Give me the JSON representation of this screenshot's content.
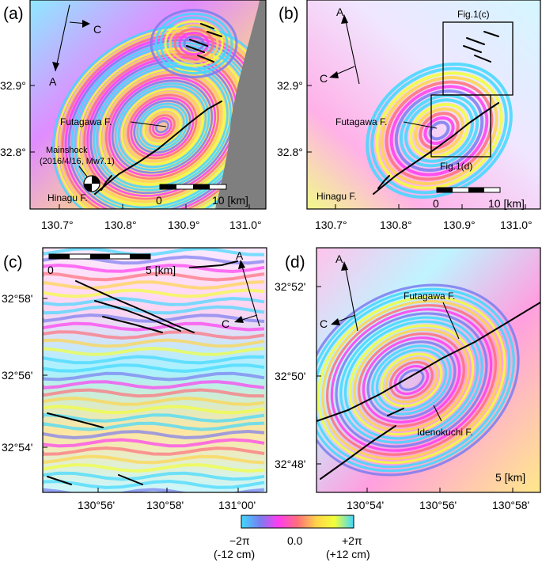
{
  "panels": {
    "a": {
      "label": "(a)",
      "x_ticks": [
        "130.7°",
        "130.8°",
        "130.9°",
        "131.0°"
      ],
      "y_ticks": [
        "32.9°",
        "32.8°"
      ],
      "arrow_a": "A",
      "arrow_c": "C",
      "fault_label": "Futagawa F.",
      "fault2_label": "Hinagu F.",
      "mainshock_line1": "Mainshock",
      "mainshock_line2": "(2016/4/16, Mw7.1)",
      "scale_zero": "0",
      "scale_end": "10 [km]"
    },
    "b": {
      "label": "(b)",
      "x_ticks": [
        "130.7°",
        "130.8°",
        "130.9°",
        "131.0°"
      ],
      "y_ticks": [
        "32.9°",
        "32.8°"
      ],
      "arrow_a": "A",
      "arrow_c": "C",
      "fault_label": "Futagawa F.",
      "fault2_label": "Hinagu F.",
      "box_c_label": "Fig.1(c)",
      "box_d_label": "Fig.1(d)",
      "scale_zero": "0",
      "scale_end": "10 [km]"
    },
    "c": {
      "label": "(c)",
      "x_ticks": [
        "130°56'",
        "130°58'",
        "131°00'"
      ],
      "y_ticks": [
        "32°58'",
        "32°56'",
        "32°54'"
      ],
      "arrow_a": "A",
      "arrow_c": "C",
      "scale_zero": "0",
      "scale_end": "5 [km]"
    },
    "d": {
      "label": "(d)",
      "x_ticks": [
        "130°54'",
        "130°56'",
        "130°58'"
      ],
      "y_ticks": [
        "32°52'",
        "32°50'",
        "32°48'"
      ],
      "arrow_a": "A",
      "arrow_c": "C",
      "fault_label": "Futagawa F.",
      "fault2_label": "Idenokuchi F.",
      "scale_end": "5 [km]"
    }
  },
  "colorbar": {
    "min_label": "−2π",
    "min_sub": "(-12 cm)",
    "mid_label": "0.0",
    "max_label": "+2π",
    "max_sub": "(+12 cm)",
    "colors": [
      "#3fd8ff",
      "#7a7cf0",
      "#ff3cf0",
      "#ff6f7a",
      "#ffd44a",
      "#f2ff3a",
      "#3fd8ff"
    ]
  }
}
